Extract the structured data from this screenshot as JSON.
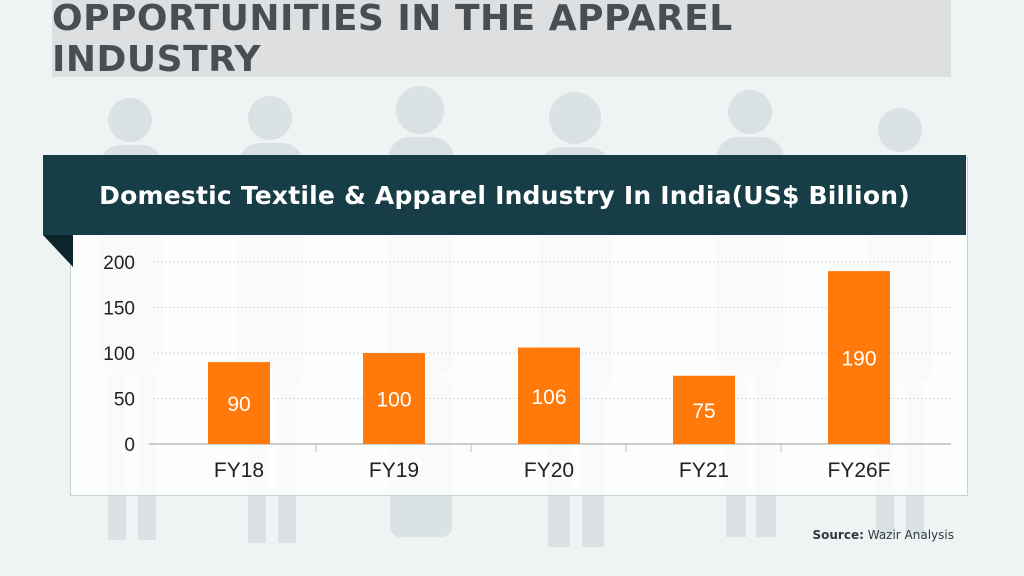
{
  "page": {
    "title": "OPPORTUNITIES IN THE APPAREL INDUSTRY"
  },
  "source": {
    "label": "Source:",
    "text": "Wazir Analysis"
  },
  "colors": {
    "bar": "#ff7a0a",
    "banner": "#173e46",
    "title_band": "#dedfe0",
    "title_text": "#474f55"
  },
  "chart_data": {
    "type": "bar",
    "title": "Domestic Textile & Apparel Industry In India(US$ Billion)",
    "xlabel": "",
    "ylabel": "",
    "categories": [
      "FY18",
      "FY19",
      "FY20",
      "FY21",
      "FY26F"
    ],
    "values": [
      90,
      100,
      106,
      75,
      190
    ],
    "data_labels": [
      "90",
      "100",
      "106",
      "75",
      "190"
    ],
    "yticks": [
      0,
      50,
      100,
      150,
      200
    ],
    "ylim": [
      0,
      200
    ],
    "grid": true,
    "legend": "none"
  }
}
